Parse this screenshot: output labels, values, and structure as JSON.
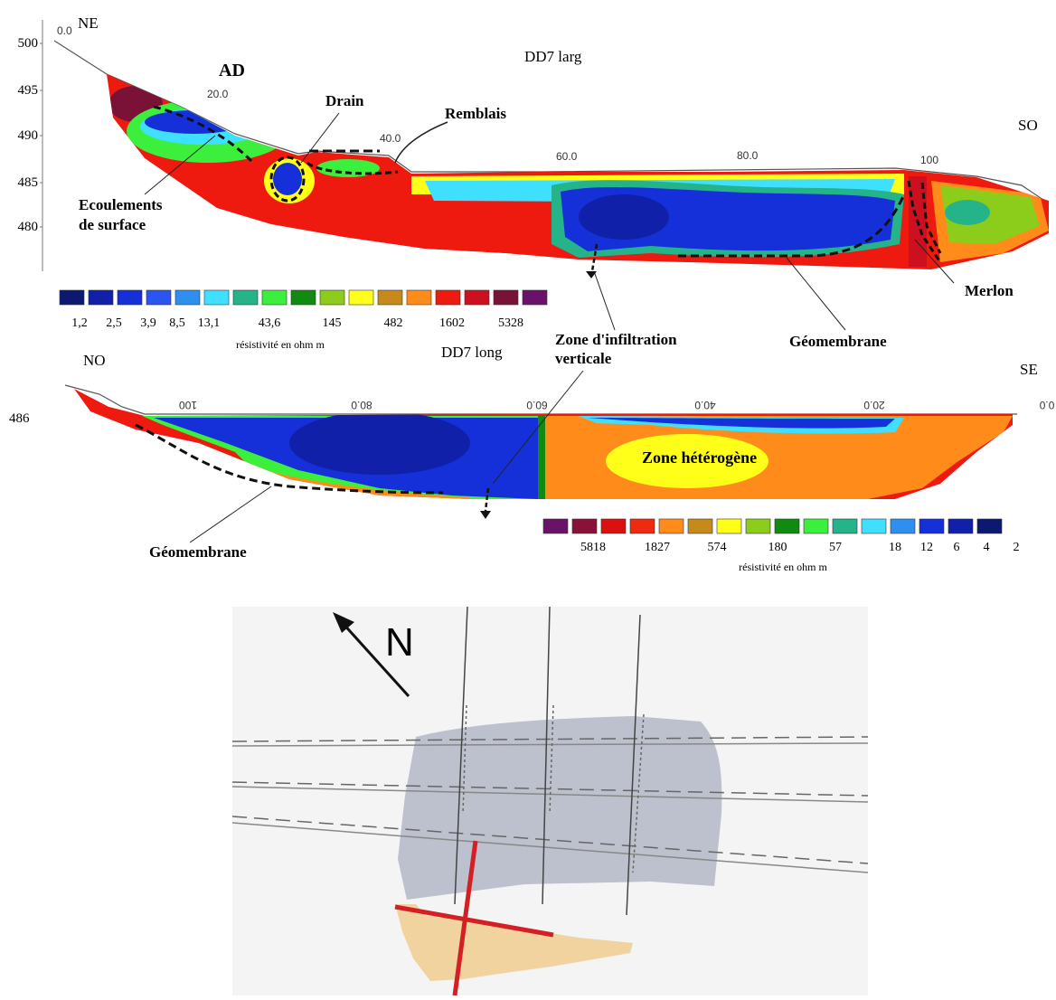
{
  "profile_top": {
    "title": "DD7 larg",
    "left_orientation": "NE",
    "right_orientation": "SO",
    "y_ticks": [
      "500",
      "495",
      "490",
      "485",
      "480"
    ],
    "x_ticks": [
      "0.0",
      "20.0",
      "40.0",
      "60.0",
      "80.0",
      "100"
    ],
    "labels": {
      "ad": "AD",
      "drain": "Drain",
      "remblais": "Remblais",
      "ecoulements_1": "Ecoulements",
      "ecoulements_2": "de surface",
      "merlon": "Merlon",
      "geomembrane": "Géomembrane"
    },
    "legend": {
      "colors": [
        "#0b1a70",
        "#1020a8",
        "#1530d8",
        "#2a55ee",
        "#2f8fee",
        "#3fe0ff",
        "#25b38a",
        "#3cef3c",
        "#108a10",
        "#8ccc1a",
        "#ffff1a",
        "#c68a1a",
        "#ff8c1a",
        "#ee1a10",
        "#cc1020",
        "#7a1238",
        "#6a1268"
      ],
      "values": [
        "1,2",
        "2,5",
        "3,9",
        "8,5",
        "13,1",
        "43,6",
        "145",
        "482",
        "1602",
        "5328"
      ],
      "unit": "résistivité en ohm m"
    }
  },
  "profile_bottom": {
    "title": "DD7 long",
    "left_orientation": "NO",
    "right_orientation": "SE",
    "y_tick": "486",
    "x_ticks": [
      "100",
      "80.0",
      "60.0",
      "40.0",
      "20.0",
      "0.0"
    ],
    "labels": {
      "zone_infiltration_1": "Zone d'infiltration",
      "zone_infiltration_2": "verticale",
      "zone_heterogene": "Zone hétérogène",
      "geomembrane": "Géomembrane"
    },
    "legend": {
      "colors": [
        "#6a1268",
        "#8a1238",
        "#dd1010",
        "#ee2a10",
        "#ff8c1a",
        "#c68a1a",
        "#ffff1a",
        "#8ccc1a",
        "#108a10",
        "#3cef3c",
        "#25b38a",
        "#3fe0ff",
        "#2f8fee",
        "#1530d8",
        "#1020a8",
        "#0b1a70"
      ],
      "values": [
        "5818",
        "1827",
        "574",
        "180",
        "57",
        "18",
        "12",
        "6",
        "4",
        "2"
      ],
      "unit": "résistivité en ohm m"
    }
  },
  "map": {
    "north_label": "N",
    "colors": {
      "zone_grey": "#b3b6c5",
      "zone_beige": "#efcf96",
      "profile_red": "#d42025"
    }
  }
}
